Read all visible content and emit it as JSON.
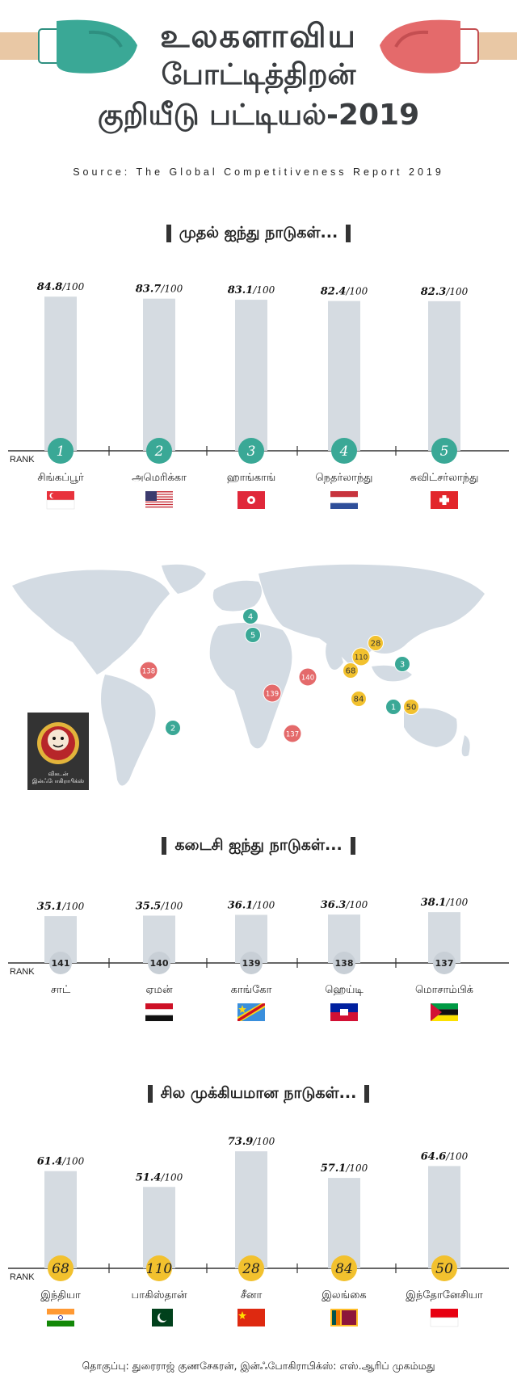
{
  "header": {
    "title_line1": "உலகளாவிய",
    "title_line2": "போட்டித்திறன்",
    "title_line3": "குறியீடு பட்டியல்-2019",
    "source": "Source: The Global Competitiveness Report 2019"
  },
  "rank_label": "RANK",
  "colors": {
    "bar": "#d5dbe1",
    "axis": "#333333",
    "teal": "#3aa896",
    "red": "#e46a6b",
    "yellow": "#f2c12e",
    "map_land": "#d3dbe3"
  },
  "chart_data": [
    {
      "type": "bar",
      "title": "முதல் ஐந்து நாடுகள்...",
      "categories": [
        "சிங்கப்பூர்",
        "அமெரிக்கா",
        "ஹாங்காங்",
        "நெதர்லாந்து",
        "சுவிட்சர்லாந்து"
      ],
      "values": [
        84.8,
        83.7,
        83.1,
        82.4,
        82.3
      ],
      "value_labels": [
        "84.8",
        "83.7",
        "83.1",
        "82.4",
        "82.3"
      ],
      "ranks": [
        "1",
        "2",
        "3",
        "4",
        "5"
      ],
      "rank_style": "teal",
      "flags": [
        "singapore",
        "usa",
        "hongkong",
        "netherlands",
        "switzerland"
      ],
      "ylim": [
        0,
        100
      ],
      "denominator": "/100"
    },
    {
      "type": "bar",
      "title": "கடைசி ஐந்து நாடுகள்...",
      "categories": [
        "சாட்",
        "ஏமன்",
        "காங்கோ",
        "ஹெய்டி",
        "மொசாம்பிக்"
      ],
      "values": [
        35.1,
        35.5,
        36.1,
        36.3,
        38.1
      ],
      "value_labels": [
        "35.1",
        "35.5",
        "36.1",
        "36.3",
        "38.1"
      ],
      "ranks": [
        "141",
        "140",
        "139",
        "138",
        "137"
      ],
      "rank_style": "gray",
      "flags": [
        "none",
        "yemen",
        "congo",
        "haiti",
        "mozambique"
      ],
      "ylim": [
        0,
        100
      ],
      "denominator": "/100"
    },
    {
      "type": "bar",
      "title": "சில முக்கியமான நாடுகள்...",
      "categories": [
        "இந்தியா",
        "பாகிஸ்தான்",
        "சீனா",
        "இலங்கை",
        "இந்தோனேசியா"
      ],
      "values": [
        61.4,
        51.4,
        73.9,
        57.1,
        64.6
      ],
      "value_labels": [
        "61.4",
        "51.4",
        "73.9",
        "57.1",
        "64.6"
      ],
      "ranks": [
        "68",
        "110",
        "28",
        "84",
        "50"
      ],
      "rank_style": "yellow",
      "flags": [
        "india",
        "pakistan",
        "china",
        "srilanka",
        "indonesia"
      ],
      "ylim": [
        0,
        100
      ],
      "denominator": "/100"
    }
  ],
  "map_markers": [
    {
      "label": "4",
      "style": "teal"
    },
    {
      "label": "5",
      "style": "teal"
    },
    {
      "label": "138",
      "style": "red"
    },
    {
      "label": "140",
      "style": "red"
    },
    {
      "label": "139",
      "style": "red"
    },
    {
      "label": "137",
      "style": "red"
    },
    {
      "label": "2",
      "style": "teal"
    },
    {
      "label": "28",
      "style": "yellow"
    },
    {
      "label": "110",
      "style": "yellow"
    },
    {
      "label": "68",
      "style": "yellow"
    },
    {
      "label": "3",
      "style": "teal"
    },
    {
      "label": "84",
      "style": "yellow"
    },
    {
      "label": "1",
      "style": "teal"
    },
    {
      "label": "50",
      "style": "yellow"
    }
  ],
  "logo_text": "விகடன் இன்ஃபோகிராபிக்ஸ்",
  "credits": "தொகுப்பு: துரைராஜ் குணசேகரன், இன்ஃபோகிராபிக்ஸ்: எஸ்.ஆரிப் முகம்மது"
}
